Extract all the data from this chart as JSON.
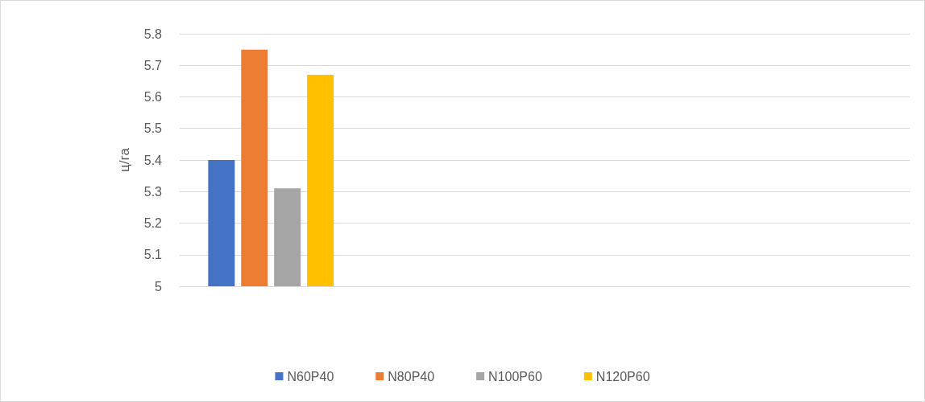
{
  "chart_data": {
    "type": "bar",
    "ylabel": "ц/га",
    "categories": [
      null,
      null,
      null,
      null
    ],
    "series": [
      {
        "name": "N60P40",
        "color": "#4472c4",
        "values": [
          5.4,
          null,
          null,
          null
        ]
      },
      {
        "name": "N80P40",
        "color": "#ed7d31",
        "values": [
          5.75,
          null,
          null,
          null
        ]
      },
      {
        "name": "N100P60",
        "color": "#a5a5a5",
        "values": [
          5.31,
          null,
          null,
          null
        ]
      },
      {
        "name": "N120P60",
        "color": "#ffc000",
        "values": [
          5.67,
          null,
          null,
          null
        ]
      }
    ],
    "ylim": [
      5,
      5.8
    ],
    "yticks": [
      5,
      5.1,
      5.2,
      5.3,
      5.4,
      5.5,
      5.6,
      5.7,
      5.8
    ],
    "grid": "y",
    "legend": "bottom"
  }
}
